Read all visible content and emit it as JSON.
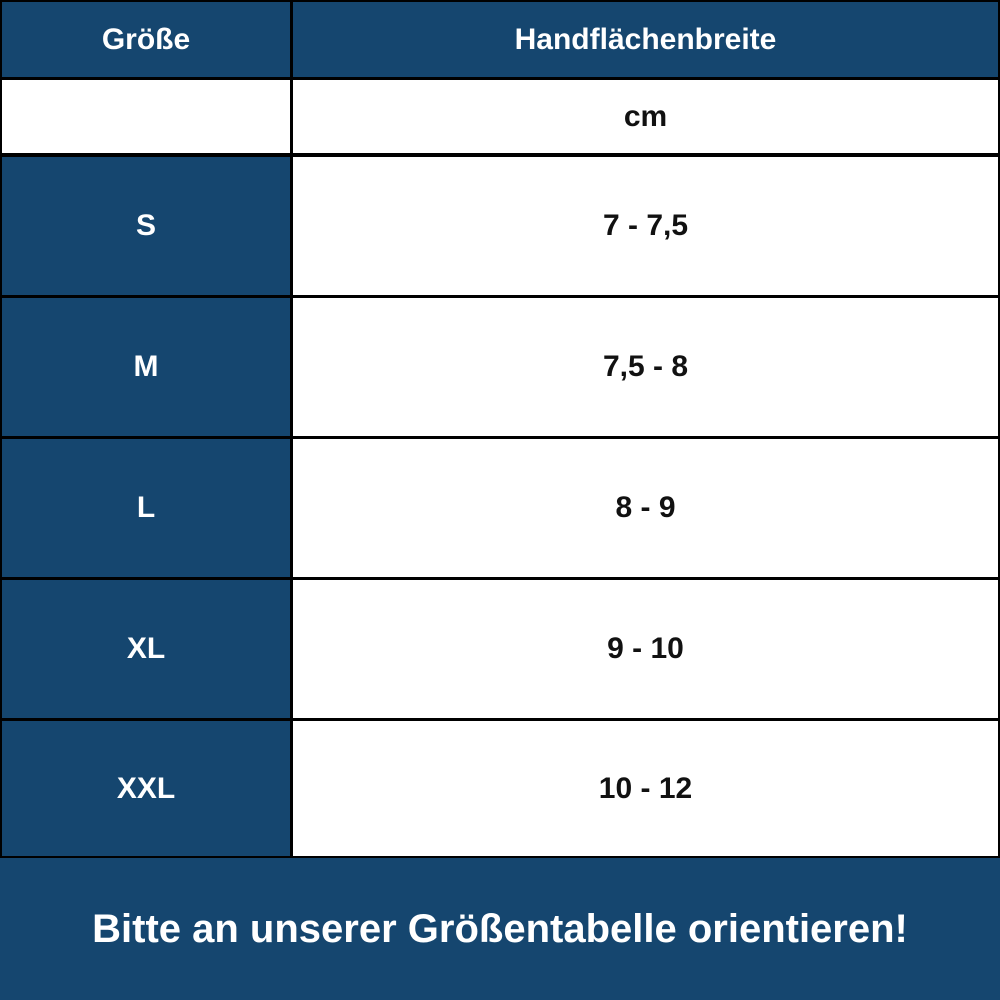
{
  "table": {
    "header": [
      "Größe",
      "Handflächenbreite"
    ],
    "unit": "cm",
    "rows": [
      [
        "S",
        "7 - 7,5"
      ],
      [
        "M",
        "7,5 - 8"
      ],
      [
        "L",
        "8 - 9"
      ],
      [
        "XL",
        "9 - 10"
      ],
      [
        "XXL",
        "10 - 12"
      ]
    ]
  },
  "footer": "Bitte an unserer Größentabelle orientieren!"
}
